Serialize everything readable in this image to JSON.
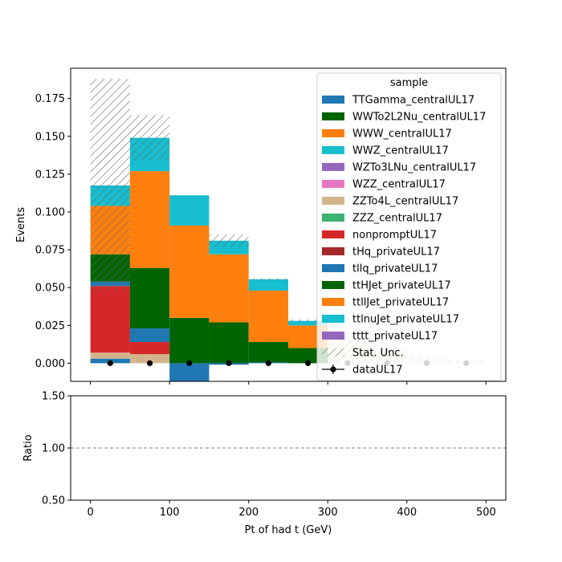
{
  "chart_data": {
    "type": "bar",
    "stacked": true,
    "x_edges": [
      0,
      50,
      100,
      150,
      200,
      250,
      300,
      350,
      400,
      450,
      500
    ],
    "x_centers": [
      25,
      75,
      125,
      175,
      225,
      275,
      325,
      375,
      425,
      475
    ],
    "xlabel": "Pt of had t (GeV)",
    "ylabel": "Events",
    "ratio_ylabel": "Ratio",
    "xlim": [
      -25,
      525
    ],
    "ylim": [
      -0.012,
      0.195
    ],
    "ratio_ylim": [
      0.5,
      1.5
    ],
    "x_ticks": [
      0,
      100,
      200,
      300,
      400,
      500
    ],
    "x_tick_labels": [
      "0",
      "100",
      "200",
      "300",
      "400",
      "500"
    ],
    "y_ticks": [
      0.0,
      0.025,
      0.05,
      0.075,
      0.1,
      0.125,
      0.15,
      0.175
    ],
    "y_tick_labels": [
      "0.000",
      "0.025",
      "0.050",
      "0.075",
      "0.100",
      "0.125",
      "0.150",
      "0.175"
    ],
    "ratio_ticks": [
      0.5,
      1.0,
      1.5
    ],
    "ratio_tick_labels": [
      "0.50",
      "1.00",
      "1.50"
    ],
    "ratio_reference": 1.0,
    "legend_title": "sample",
    "legend_position": "top-right",
    "series": [
      {
        "name": "TTGamma_centralUL17",
        "color": "#1f77b4",
        "values": [
          0.003,
          0,
          0,
          0,
          0,
          0,
          0,
          0,
          0,
          0
        ]
      },
      {
        "name": "WWTo2L2Nu_centralUL17",
        "color": "#006400",
        "values": [
          0,
          0,
          0,
          0,
          0,
          0,
          0,
          0,
          0,
          0
        ]
      },
      {
        "name": "WWW_centralUL17",
        "color": "#ff7f0e",
        "values": [
          0,
          0,
          0,
          0,
          0,
          0,
          0,
          0,
          0,
          0
        ]
      },
      {
        "name": "WWZ_centralUL17",
        "color": "#17becf",
        "values": [
          0,
          0,
          0,
          0,
          0,
          0,
          0,
          0,
          0,
          0
        ]
      },
      {
        "name": "WZTo3LNu_centralUL17",
        "color": "#9467bd",
        "values": [
          0,
          0,
          0,
          0,
          0,
          0,
          0,
          0,
          0,
          0
        ]
      },
      {
        "name": "WZZ_centralUL17",
        "color": "#e377c2",
        "values": [
          0,
          0,
          0,
          0,
          0,
          0,
          0,
          0,
          0,
          0
        ]
      },
      {
        "name": "ZZTo4L_centralUL17",
        "color": "#d2b48c",
        "values": [
          0.004,
          0.006,
          0,
          0,
          0,
          0,
          0,
          0,
          0,
          0
        ]
      },
      {
        "name": "ZZZ_centralUL17",
        "color": "#3cb371",
        "values": [
          0,
          0,
          0,
          0,
          0,
          0,
          0,
          0,
          0,
          0
        ]
      },
      {
        "name": "nonpromptUL17",
        "color": "#d62728",
        "values": [
          0.044,
          0.008,
          0,
          0,
          0,
          0,
          0,
          0,
          0,
          0
        ]
      },
      {
        "name": "tHq_privateUL17",
        "color": "#a52a2a",
        "values": [
          0,
          0,
          0,
          0,
          0,
          0,
          0,
          0,
          0,
          0
        ]
      },
      {
        "name": "tllq_privateUL17",
        "color": "#1f77b4",
        "values": [
          0.003,
          0.009,
          -0.012,
          -0.001,
          0.0005,
          0,
          0,
          0,
          0,
          0
        ]
      },
      {
        "name": "ttHJet_privateUL17",
        "color": "#006400",
        "values": [
          0.018,
          0.04,
          0.03,
          0.027,
          0.0135,
          0.01,
          0,
          0,
          0,
          0
        ]
      },
      {
        "name": "ttllJet_privateUL17",
        "color": "#ff7f0e",
        "values": [
          0.032,
          0.064,
          0.061,
          0.045,
          0.034,
          0.015,
          0,
          0,
          0,
          0
        ]
      },
      {
        "name": "ttlnuJet_privateUL17",
        "color": "#17becf",
        "values": [
          0.0135,
          0.022,
          0.02,
          0.009,
          0.0075,
          0.003,
          0,
          0,
          0,
          0
        ]
      },
      {
        "name": "tttt_privateUL17",
        "color": "#9467bd",
        "values": [
          0,
          0,
          0,
          0,
          0,
          0,
          0,
          0,
          0,
          0
        ]
      }
    ],
    "faded_tail_values": [
      0.018,
      0.01,
      0.0045,
      0.002
    ],
    "stat_unc": {
      "name": "Stat. Unc.",
      "upper": [
        0.188,
        0.164,
        0.101,
        0.085,
        0.056,
        0.029,
        0.018,
        0.01,
        0.0045,
        0.002
      ]
    },
    "data": {
      "name": "dataUL17",
      "values": [
        0,
        0,
        0,
        0,
        0,
        0,
        0,
        0,
        0,
        0
      ]
    }
  }
}
